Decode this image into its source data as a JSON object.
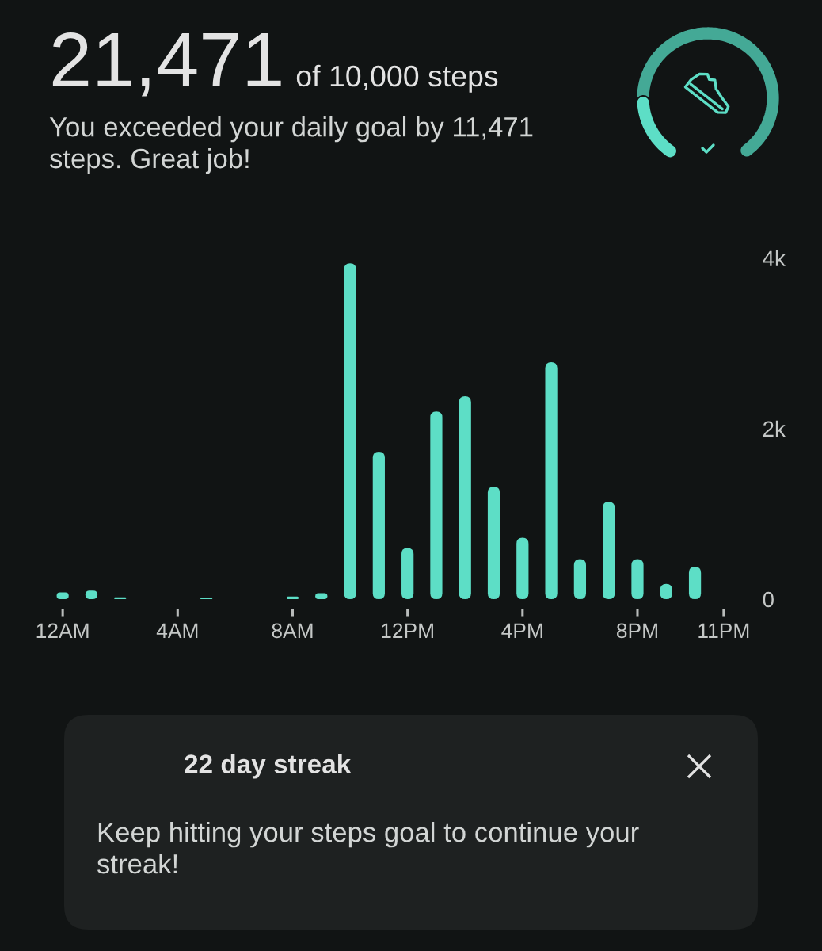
{
  "chart_data": {
    "type": "bar",
    "title": "21,471",
    "subtitle": "You exceeded your daily goal by 11,471 steps. Great job!",
    "annotations": [
      "of 10,000 steps",
      "22 day streak",
      "Keep hitting your steps goal to continue your streak!"
    ],
    "categories": [
      "12AM",
      null,
      null,
      null,
      "4AM",
      null,
      null,
      null,
      "8AM",
      null,
      null,
      null,
      "12PM",
      null,
      null,
      null,
      "4PM",
      null,
      null,
      null,
      "8PM",
      null,
      null,
      "11PM"
    ],
    "values": [
      80,
      100,
      20,
      null,
      null,
      10,
      null,
      null,
      30,
      70,
      3940,
      1730,
      600,
      2200,
      2380,
      1320,
      720,
      2780,
      470,
      1140,
      470,
      180,
      380,
      null
    ],
    "color": "#5ddec6",
    "ylim": [
      0,
      4000
    ],
    "yticks": [
      0,
      {
        "value": 2000,
        "label": "2k"
      },
      {
        "value": 4000,
        "label": "4k"
      }
    ]
  }
}
